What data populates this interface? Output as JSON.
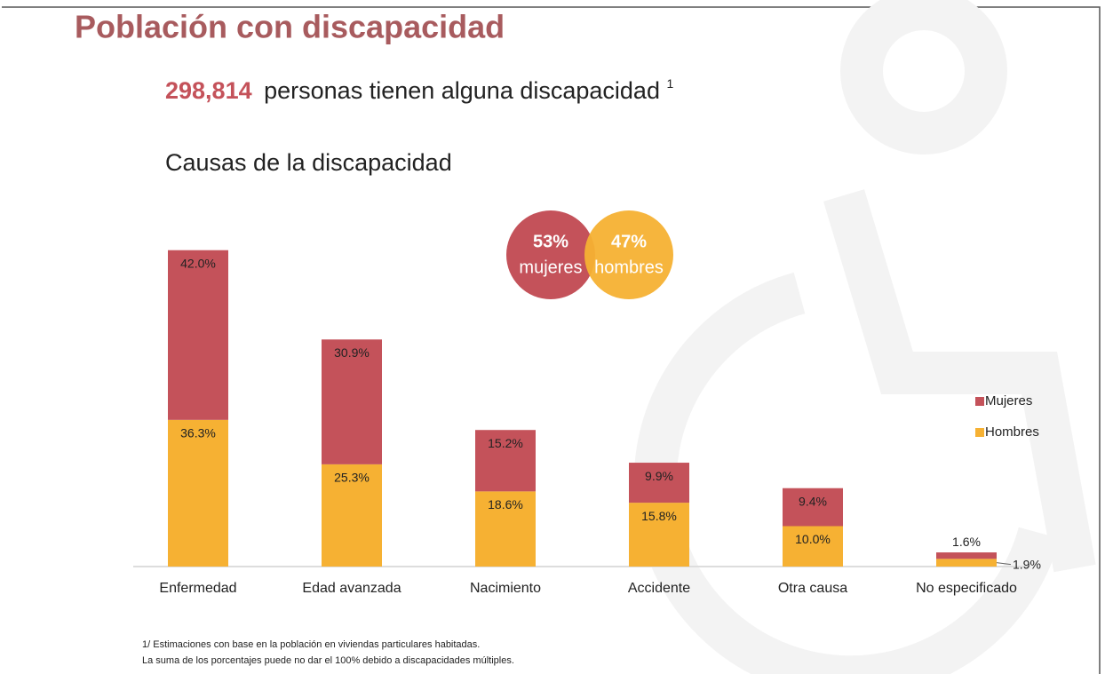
{
  "header": {
    "title": "Población con discapacidad",
    "headline_number": "298,814",
    "headline_text": "personas tienen alguna discapacidad",
    "headline_note": "1",
    "subtitle": "Causas de la discapacidad"
  },
  "gender_split": [
    {
      "label": "53%",
      "name": "mujeres",
      "color": "#c4525a"
    },
    {
      "label": "47%",
      "name": "hombres",
      "color": "#f6b133"
    }
  ],
  "chart_data": {
    "type": "stacked_bar",
    "categories": [
      "Enfermedad",
      "Edad avanzada",
      "Nacimiento",
      "Accidente",
      "Otra causa",
      "No especificado"
    ],
    "series": [
      {
        "name": "Hombres",
        "color": "#f6b133",
        "values": [
          36.3,
          25.3,
          18.6,
          15.8,
          10.0,
          1.9
        ],
        "value_labels": [
          "36.3%",
          "25.3%",
          "18.6%",
          "15.8%",
          "10.0%",
          "1.9%"
        ]
      },
      {
        "name": "Mujeres",
        "color": "#c4525a",
        "values": [
          42.0,
          30.9,
          15.2,
          9.9,
          9.4,
          1.6
        ],
        "value_labels": [
          "42.0%",
          "30.9%",
          "15.2%",
          "9.9%",
          "9.4%",
          "1.6%"
        ]
      }
    ],
    "legend_order": [
      1,
      0
    ]
  },
  "footnotes": [
    "1/ Estimaciones con base en la población en viviendas particulares habitadas.",
    "La suma de los porcentajes puede no dar el 100% debido a discapacidades múltiples."
  ]
}
